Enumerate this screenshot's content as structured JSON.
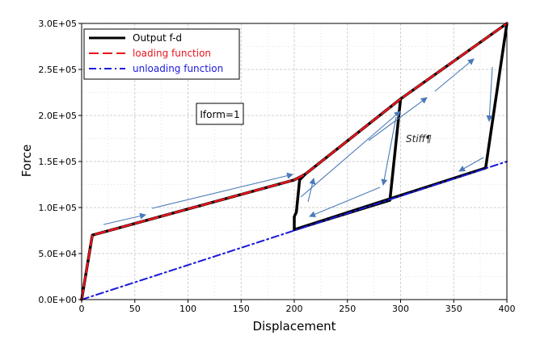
{
  "chart_data": {
    "type": "line",
    "title": "",
    "xlabel": "Displacement",
    "ylabel": "Force",
    "xlim": [
      0,
      400
    ],
    "ylim": [
      0,
      300000
    ],
    "x_ticks": [
      0,
      50,
      100,
      150,
      200,
      250,
      300,
      350,
      400
    ],
    "x_tick_labels": [
      "0",
      "50",
      "100",
      "150",
      "200",
      "250",
      "300",
      "350",
      "400"
    ],
    "y_ticks": [
      0,
      50000,
      100000,
      150000,
      200000,
      250000,
      300000
    ],
    "y_tick_labels": [
      "0.0E+00",
      "5.0E+04",
      "1.0E+05",
      "1.5E+05",
      "2.0E+05",
      "2.5E+05",
      "3.0E+05"
    ],
    "grid": true,
    "legend_position": "top-left",
    "series": [
      {
        "name": "Output f-d",
        "color": "#000000",
        "style": "solid",
        "x": [
          0,
          10,
          200,
          210,
          300,
          290,
          200,
          200,
          202,
          205,
          210,
          300,
          400,
          380,
          200
        ],
        "y": [
          0,
          70000,
          130000,
          136000,
          218000,
          108000,
          76000,
          90000,
          95000,
          130000,
          136000,
          218000,
          300000,
          143000,
          76000
        ]
      },
      {
        "name": "loading function",
        "color": "#e8141c",
        "style": "dashed",
        "x": [
          0,
          10,
          200,
          210,
          300,
          400
        ],
        "y": [
          0,
          70000,
          130000,
          136000,
          218000,
          300000
        ]
      },
      {
        "name": "unloading function",
        "color": "#1a1adc",
        "style": "dashdot",
        "x": [
          0,
          400
        ],
        "y": [
          0,
          150000
        ]
      }
    ],
    "annotations": {
      "box_label": "Iform=1",
      "stiff_label": "Stiff¶"
    },
    "arrow_color": "#4a7ab8"
  }
}
